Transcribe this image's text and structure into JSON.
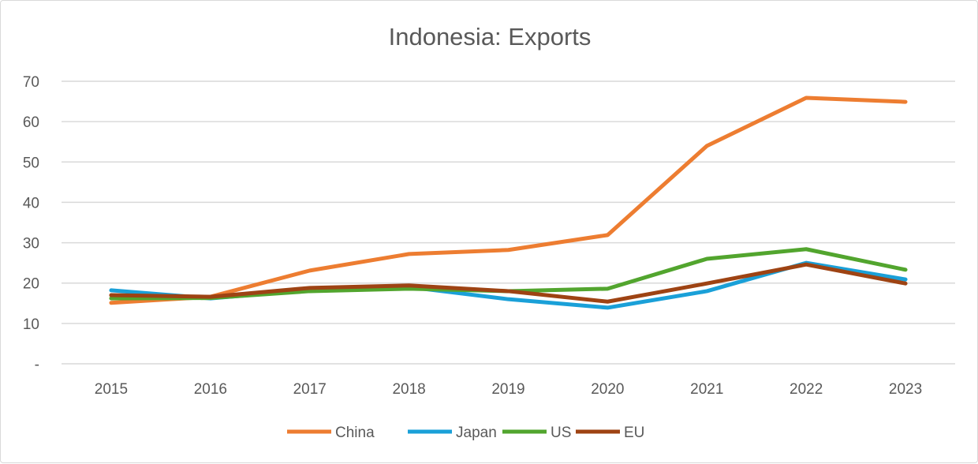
{
  "chart_data": {
    "type": "line",
    "title": "Indonesia: Exports",
    "xlabel": "",
    "ylabel": "",
    "categories": [
      "2015",
      "2016",
      "2017",
      "2018",
      "2019",
      "2020",
      "2021",
      "2022",
      "2023"
    ],
    "ylim": [
      0,
      70
    ],
    "yticks": [
      0,
      10,
      20,
      30,
      40,
      50,
      60,
      70
    ],
    "ytick_labels": [
      "-",
      "10",
      "20",
      "30",
      "40",
      "50",
      "60",
      "70"
    ],
    "grid": true,
    "legend": "bottom",
    "series": [
      {
        "name": "China",
        "color": "#ED7D31",
        "values": [
          15.1,
          16.6,
          23.1,
          27.2,
          28.2,
          31.9,
          54.0,
          65.9,
          64.9
        ]
      },
      {
        "name": "Japan",
        "color": "#1AA0D8",
        "values": [
          18.2,
          16.2,
          18.3,
          19.0,
          16.0,
          13.9,
          18.0,
          25.0,
          20.9
        ]
      },
      {
        "name": "US",
        "color": "#52A52E",
        "values": [
          16.2,
          16.3,
          18.0,
          18.6,
          18.0,
          18.6,
          26.0,
          28.4,
          23.3
        ]
      },
      {
        "name": "EU",
        "color": "#9E4313",
        "values": [
          17.0,
          16.6,
          18.8,
          19.4,
          18.0,
          15.4,
          19.9,
          24.6,
          19.9
        ]
      }
    ]
  }
}
